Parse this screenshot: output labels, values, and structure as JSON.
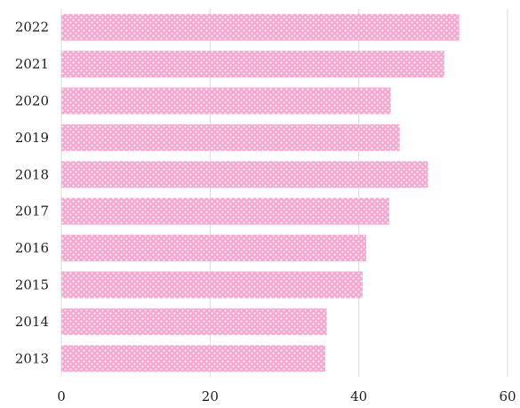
{
  "chart_data": {
    "type": "bar",
    "orientation": "horizontal",
    "categories": [
      "2022",
      "2021",
      "2020",
      "2019",
      "2018",
      "2017",
      "2016",
      "2015",
      "2014",
      "2013"
    ],
    "values": [
      53.5,
      51.5,
      44.3,
      45.5,
      49.3,
      44.1,
      41.0,
      40.5,
      35.7,
      35.5
    ],
    "xlim": [
      0,
      60
    ],
    "xticks": [
      "0",
      "20",
      "40",
      "60"
    ],
    "grid": "vertical",
    "bar_color": "#f7a8d0",
    "bar_pattern_color": "#ffffff"
  }
}
